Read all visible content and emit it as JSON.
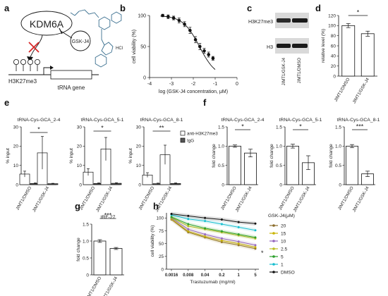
{
  "panels": {
    "a": "a",
    "b": "b",
    "c": "c",
    "d": "d",
    "e": "e",
    "f": "f",
    "g": "g",
    "h": "h"
  },
  "colors": {
    "black": "#111111",
    "dark_gray": "#555555",
    "red": "#d62728",
    "light_gray": "#bdbdbd",
    "mol": "#3a6f8f"
  },
  "panel_a": {
    "kdm6a": "KDM6A",
    "inhibitor": "GSK-J4",
    "mark": "H3K27me3",
    "gene": "tRNA gene",
    "salt": "HCl",
    "icons": [
      "red-cross-icon",
      "inhibition-arrow-icon",
      "methyl-circle-icon",
      "promoter-arrow-icon",
      "chemical-structure-icon"
    ]
  },
  "panel_c": {
    "band_top": "H3K27me3",
    "band_bottom": "H3",
    "lanes": [
      "JIMT1/GSK-J4",
      "JIMT1/DMSO"
    ]
  },
  "chart_data": [
    {
      "panel": "b",
      "type": "scatter",
      "xlabel": "log (GSK-J4 concentration, μM)",
      "ylabel": "cell viability (%)",
      "xlim": [
        -4,
        0
      ],
      "ylim": [
        0,
        100
      ],
      "xticks": [
        "-4",
        "-3",
        "-2",
        "-1",
        "0"
      ],
      "yticks": [
        "0",
        "50",
        "100"
      ],
      "x": [
        -3.4,
        -3.15,
        -2.9,
        -2.65,
        -2.4,
        -2.15,
        -1.9,
        -1.7,
        -1.5,
        -1.3,
        -1.1
      ],
      "y": [
        100,
        98,
        96,
        92,
        86,
        76,
        61,
        50,
        43,
        37,
        31
      ],
      "err": [
        2,
        3,
        3,
        4,
        4,
        5,
        5,
        5,
        4,
        4,
        3
      ]
    },
    {
      "panel": "d",
      "type": "bar",
      "significance": "*",
      "ylabel": "relative level (%)",
      "ylim": [
        0,
        120
      ],
      "yticks": [
        "0",
        "20",
        "40",
        "60",
        "80",
        "100",
        "120"
      ],
      "categories": [
        "JIMT1/DMSO",
        "JIMT1/GSK-J4"
      ],
      "values": [
        100,
        84
      ],
      "err": [
        4,
        5
      ]
    },
    {
      "panel": "e1",
      "type": "bar",
      "title": "tRNA-Cys-GCA_2-4",
      "significance": "*",
      "ylabel": "% input",
      "ylim": [
        0,
        30
      ],
      "yticks": [
        "0",
        "10",
        "20",
        "30"
      ],
      "categories": [
        "JIMT1/DMSO",
        "JIMT1/GSK-J4"
      ],
      "series": [
        {
          "name": "anti-H3K27me3",
          "values": [
            5.5,
            16.5
          ],
          "err": [
            1.5,
            8.5
          ]
        },
        {
          "name": "IgG",
          "values": [
            0.6,
            0.5
          ],
          "err": [
            0.3,
            0.2
          ]
        }
      ]
    },
    {
      "panel": "e2",
      "type": "bar",
      "title": "tRNA-Cys-GCA_5-1",
      "significance": "*",
      "ylabel": "% input",
      "ylim": [
        0,
        30
      ],
      "yticks": [
        "0",
        "10",
        "20",
        "30"
      ],
      "categories": [
        "JIMT1/DMSO",
        "JIMT1/GSK-J4"
      ],
      "series": [
        {
          "name": "anti-H3K27me3",
          "values": [
            6.5,
            18.5
          ],
          "err": [
            1.8,
            6
          ]
        },
        {
          "name": "IgG",
          "values": [
            0.6,
            0.7
          ],
          "err": [
            0.3,
            0.3
          ]
        }
      ]
    },
    {
      "panel": "e3",
      "type": "bar",
      "title": "tRNA-Cys-GCA_8-1",
      "significance": "**",
      "ylabel": "% input",
      "ylim": [
        0,
        30
      ],
      "yticks": [
        "0",
        "10",
        "20",
        "30"
      ],
      "categories": [
        "JIMT1/DMSO",
        "JIMT1/GSK-J4"
      ],
      "series": [
        {
          "name": "anti-H3K27me3",
          "values": [
            5,
            15.5
          ],
          "err": [
            1.2,
            5
          ]
        },
        {
          "name": "IgG",
          "values": [
            0.5,
            0.6
          ],
          "err": [
            0.3,
            0.3
          ]
        }
      ]
    },
    {
      "panel": "f1",
      "type": "bar",
      "title": "tRNA-Cys-GCA_2-4",
      "significance": "*",
      "ylabel": "fold change",
      "ylim": [
        0,
        1.5
      ],
      "yticks": [
        "0",
        "0.5",
        "1.0",
        "1.5"
      ],
      "categories": [
        "JIMT1/DMSO",
        "JIMT1/GSK-J4"
      ],
      "values": [
        1.0,
        0.82
      ],
      "err": [
        0.03,
        0.1
      ]
    },
    {
      "panel": "f2",
      "type": "bar",
      "title": "tRNA-Cys-GCA_5-1",
      "significance": "*",
      "ylabel": "fold change",
      "ylim": [
        0,
        1.5
      ],
      "yticks": [
        "0",
        "0.5",
        "1.0",
        "1.5"
      ],
      "categories": [
        "JIMT1/DMSO",
        "JIMT1/GSK-J4"
      ],
      "values": [
        1.0,
        0.57
      ],
      "err": [
        0.05,
        0.18
      ]
    },
    {
      "panel": "f3",
      "type": "bar",
      "title": "tRNA-Cys-GCA_8-1",
      "significance": "***",
      "ylabel": "fold change",
      "ylim": [
        0,
        1.5
      ],
      "yticks": [
        "0",
        "0.5",
        "1.0",
        "1.5"
      ],
      "categories": [
        "JIMT1/DMSO",
        "JIMT1/GSK-J4"
      ],
      "values": [
        1.0,
        0.28
      ],
      "err": [
        0.04,
        0.07
      ]
    },
    {
      "panel": "g",
      "type": "bar",
      "title": "tRF-27",
      "significance": "***",
      "ylabel": "fold change",
      "ylim": [
        0,
        1.5
      ],
      "yticks": [
        "0",
        "0.5",
        "1.0",
        "1.5"
      ],
      "categories": [
        "JIMT1/DMSO",
        "JIMT1/GSK-J4"
      ],
      "values": [
        1.0,
        0.78
      ],
      "err": [
        0.04,
        0.03
      ]
    },
    {
      "panel": "h",
      "type": "line",
      "significance": "*",
      "xlabel": "Trastuzumab (mg/ml)",
      "ylabel": "cell viability (%)",
      "ylim": [
        0,
        110
      ],
      "yticks": [
        "0",
        "25",
        "50",
        "75",
        "100"
      ],
      "x": [
        "0.0016",
        "0.008",
        "0.04",
        "0.2",
        "1",
        "5"
      ],
      "legend_title": "GSK-J4(μM)",
      "series": [
        {
          "name": "20",
          "color": "#8c6d2c",
          "values": [
            97,
            72,
            62,
            53,
            47,
            40
          ]
        },
        {
          "name": "15",
          "color": "#c9b400",
          "values": [
            98,
            74,
            64,
            56,
            50,
            43
          ]
        },
        {
          "name": "10",
          "color": "#9467bd",
          "values": [
            100,
            78,
            68,
            60,
            54,
            47
          ]
        },
        {
          "name": "2.5",
          "color": "#bcbd22",
          "values": [
            101,
            84,
            78,
            72,
            66,
            60
          ]
        },
        {
          "name": "5",
          "color": "#2ca02c",
          "values": [
            102,
            88,
            80,
            74,
            68,
            62
          ]
        },
        {
          "name": "1",
          "color": "#17becf",
          "values": [
            106,
            98,
            94,
            88,
            82,
            76
          ]
        },
        {
          "name": "DMSO",
          "color": "#111111",
          "values": [
            108,
            104,
            100,
            97,
            92,
            89
          ]
        }
      ]
    }
  ]
}
